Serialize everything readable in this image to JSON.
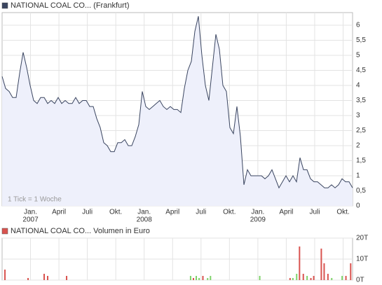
{
  "chart_data": [
    {
      "type": "area",
      "title": "NATIONAL COAL CO... (Frankfurt)",
      "legend_color": "#3a4560",
      "annotation": "1 Tick = 1 Woche",
      "color": "#3a4560",
      "fill": "#eef0fb",
      "grid": true,
      "x": [
        -3,
        -2.63,
        -2.26,
        -1.89,
        -1.52,
        -1.15,
        -0.78,
        -0.41,
        -0.04,
        0.33,
        0.7,
        1.07,
        1.44,
        1.81,
        2.18,
        2.55,
        2.92,
        3.29,
        3.66,
        4.03,
        4.4,
        4.77,
        5.14,
        5.51,
        5.88,
        6.25,
        6.62,
        6.99,
        7.36,
        7.73,
        8.1,
        8.47,
        8.84,
        9.21,
        9.58,
        9.95,
        10.32,
        10.69,
        11.06,
        11.43,
        11.8,
        12.17,
        12.54,
        12.91,
        13.28,
        13.65,
        14.02,
        14.39,
        14.76,
        15.13,
        15.5,
        15.87,
        16.24,
        16.61,
        16.98,
        17.35,
        17.72,
        18.09,
        18.46,
        18.83,
        19.2,
        19.57,
        19.94,
        20.31,
        20.68,
        21.05,
        21.42,
        21.79,
        22.16,
        22.53,
        22.9,
        23.27,
        23.64,
        24.01,
        24.38,
        24.75,
        25.12,
        25.49,
        25.86,
        26.23,
        26.6,
        26.97,
        27.34,
        27.71,
        28.08,
        28.45,
        28.82,
        29.19,
        29.56,
        29.93,
        30.3,
        30.67,
        31.04,
        31.41,
        31.78,
        32.15,
        32.52,
        32.89,
        33.26,
        33.63,
        34.0
      ],
      "values": [
        4.3,
        3.9,
        3.8,
        3.6,
        3.6,
        4.4,
        5.1,
        4.6,
        4.0,
        3.5,
        3.4,
        3.6,
        3.6,
        3.4,
        3.5,
        3.4,
        3.6,
        3.4,
        3.5,
        3.4,
        3.4,
        3.6,
        3.4,
        3.5,
        3.5,
        3.3,
        3.3,
        2.9,
        2.6,
        2.1,
        2.0,
        1.8,
        1.8,
        2.1,
        2.1,
        2.2,
        2.0,
        2.0,
        2.3,
        2.7,
        3.8,
        3.3,
        3.2,
        3.3,
        3.4,
        3.5,
        3.3,
        3.2,
        3.3,
        3.2,
        3.2,
        3.1,
        3.9,
        4.5,
        4.8,
        5.8,
        6.3,
        5.0,
        4.0,
        3.5,
        4.6,
        5.7,
        5.2,
        4.0,
        3.8,
        2.6,
        2.4,
        3.3,
        2.3,
        0.7,
        1.2,
        1.0,
        1.0,
        1.0,
        1.0,
        0.9,
        1.0,
        1.2,
        0.9,
        0.6,
        0.8,
        1.0,
        0.8,
        1.0,
        0.8,
        1.6,
        1.2,
        1.2,
        0.9,
        0.8,
        0.8,
        0.7,
        0.6,
        0.6,
        0.7,
        0.6,
        0.7,
        0.9,
        0.8,
        0.8,
        0.6
      ],
      "xlim": [
        -3,
        34
      ],
      "xticks": [
        {
          "value": 0,
          "label": "Jan."
        },
        {
          "value": 3,
          "label": "April"
        },
        {
          "value": 6,
          "label": "Juli"
        },
        {
          "value": 9,
          "label": "Okt."
        },
        {
          "value": 12,
          "label": "Jan."
        },
        {
          "value": 15,
          "label": "April"
        },
        {
          "value": 18,
          "label": "Juli"
        },
        {
          "value": 21,
          "label": "Okt."
        },
        {
          "value": 24,
          "label": "Jan."
        },
        {
          "value": 27,
          "label": "April"
        },
        {
          "value": 30,
          "label": "Juli"
        },
        {
          "value": 33,
          "label": "Okt."
        }
      ],
      "year_ticks": [
        {
          "value": 0,
          "label": "2007"
        },
        {
          "value": 12,
          "label": "2008"
        },
        {
          "value": 24,
          "label": "2009"
        }
      ],
      "ylim": [
        0,
        6.42
      ],
      "yticks": [
        0,
        {
          "value": 0.5,
          "label": "0,5"
        },
        1,
        {
          "value": 1.5,
          "label": "1,5"
        },
        2,
        {
          "value": 2.5,
          "label": "2,5"
        },
        3,
        {
          "value": 3.5,
          "label": "3,5"
        },
        4,
        {
          "value": 4.5,
          "label": "4,5"
        },
        5,
        {
          "value": 5.5,
          "label": "5,5"
        },
        6
      ]
    },
    {
      "type": "bar",
      "title": "NATIONAL COAL CO... Volumen in Euro",
      "legend_color": "#d9534f",
      "grid": true,
      "x": [
        -2.7,
        -0.26,
        1.44,
        1.81,
        3.81,
        16.9,
        17.2,
        17.5,
        17.8,
        18.2,
        18.7,
        19.0,
        24.2,
        27.4,
        27.7,
        28.1,
        28.4,
        28.8,
        29.2,
        29.6,
        29.9,
        30.7,
        31.0,
        31.4,
        31.8,
        32.9,
        33.3,
        33.8
      ],
      "values": [
        5,
        1,
        3,
        2,
        2,
        2,
        1,
        2,
        1,
        2,
        1,
        2,
        2,
        1,
        1,
        3,
        16,
        3,
        2,
        1,
        2,
        15,
        8,
        3,
        1,
        2,
        2,
        8
      ],
      "colors": [
        "#d9534f",
        "#d9534f",
        "#d9534f",
        "#d9534f",
        "#d9534f",
        "#7ed36a",
        "#d9534f",
        "#7ed36a",
        "#7ed36a",
        "#d9534f",
        "#7ed36a",
        "#7ed36a",
        "#7ed36a",
        "#d9534f",
        "#7ed36a",
        "#7ed36a",
        "#d9534f",
        "#d9534f",
        "#7ed36a",
        "#d9534f",
        "#d9534f",
        "#d9534f",
        "#d9534f",
        "#d9534f",
        "#7ed36a",
        "#7ed36a",
        "#d9534f",
        "#d9534f"
      ],
      "xlim": [
        -3,
        34
      ],
      "ylim": [
        0,
        20
      ],
      "yticks": [
        {
          "value": 0,
          "label": "0T"
        },
        {
          "value": 10,
          "label": "10T"
        },
        {
          "value": 20,
          "label": "20T"
        }
      ]
    }
  ]
}
